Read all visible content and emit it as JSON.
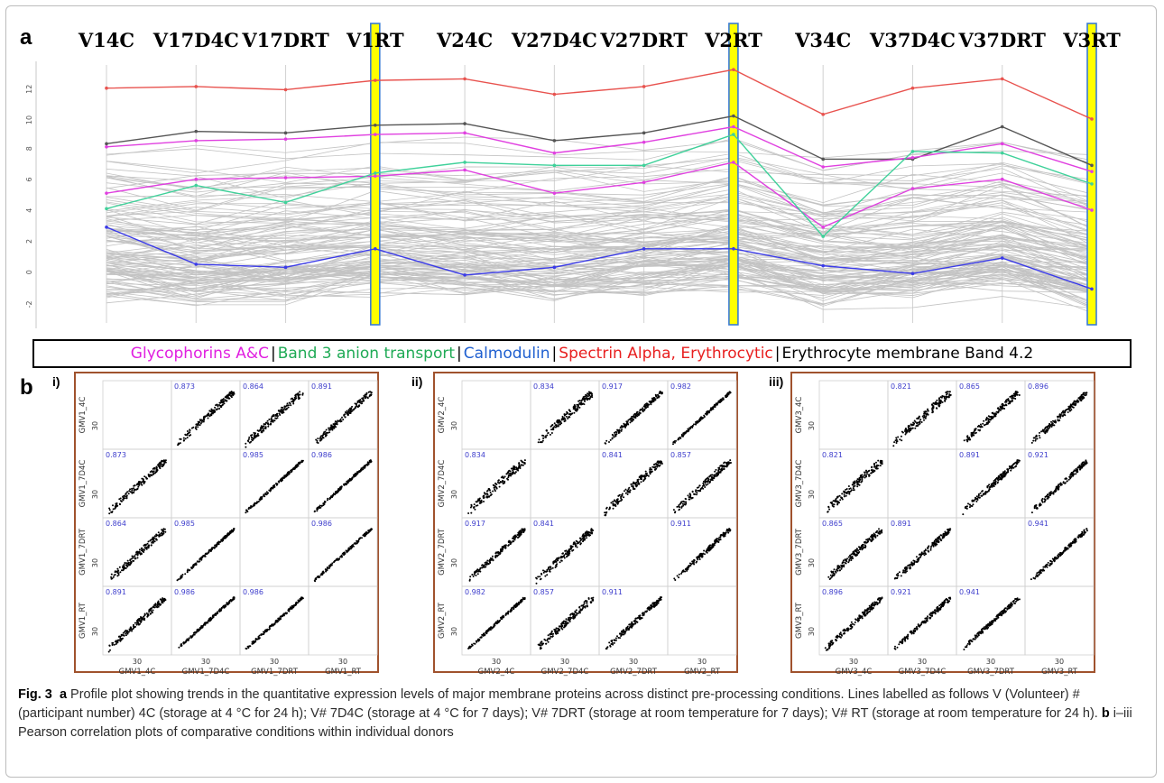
{
  "panel_a_letter": "a",
  "panel_b_letter": "b",
  "chart_data": [
    {
      "type": "line",
      "panel": "a",
      "categories": [
        "V14C",
        "V17D4C",
        "V17DRT",
        "V1RT",
        "V24C",
        "V27D4C",
        "V27DRT",
        "V2RT",
        "V34C",
        "V37D4C",
        "V37DRT",
        "V3RT"
      ],
      "highlighted_categories": [
        "V1RT",
        "V2RT",
        "V3RT"
      ],
      "highlight_color": "#ffff00",
      "yticks": [
        -2,
        0,
        2,
        4,
        6,
        8,
        10,
        12
      ],
      "ylim": [
        -3.2,
        13.5
      ],
      "background_series_count": 120,
      "background_color": "#c3c3c3",
      "series": [
        {
          "name": "Spectrin Alpha, Erythrocytic",
          "color": "#e8534f",
          "values": [
            12,
            12.1,
            11.9,
            12.5,
            12.6,
            11.6,
            12.1,
            13.2,
            10.3,
            12,
            12.6,
            10
          ]
        },
        {
          "name": "Erythrocyte membrane Band 4.2",
          "color": "#555555",
          "values": [
            8.4,
            9.2,
            9.1,
            9.6,
            9.7,
            8.6,
            9.1,
            10.2,
            7.4,
            7.4,
            9.5,
            7
          ]
        },
        {
          "name": "Glycophorins A&C",
          "color": "#e040e0",
          "values": [
            8.2,
            8.6,
            8.7,
            9.0,
            9.1,
            7.8,
            8.5,
            9.5,
            6.9,
            7.5,
            8.4,
            6.6
          ]
        },
        {
          "name": "Glycophorins A&C",
          "color": "#e040e0",
          "values": [
            5.2,
            6.1,
            6.2,
            6.3,
            6.7,
            5.2,
            5.9,
            7.2,
            3.0,
            5.5,
            6.1,
            4.1
          ]
        },
        {
          "name": "Band 3 anion transport",
          "color": "#3fd19a",
          "values": [
            4.2,
            5.7,
            4.6,
            6.5,
            7.2,
            7.0,
            7.0,
            9.0,
            2.4,
            7.9,
            7.8,
            5.8
          ]
        },
        {
          "name": "Calmodulin",
          "color": "#3b3be8",
          "values": [
            3.0,
            0.6,
            0.4,
            1.6,
            -0.1,
            0.4,
            1.6,
            1.6,
            0.5,
            0.0,
            1.0,
            -1.0
          ]
        }
      ]
    },
    {
      "type": "scatter",
      "panel": "b-i",
      "label": "i)",
      "variables": [
        "GMV1_4C",
        "GMV1_7D4C",
        "GMV1_7DRT",
        "GMV1_RT"
      ],
      "correlations": [
        [
          null,
          0.873,
          0.864,
          0.891
        ],
        [
          0.873,
          null,
          0.985,
          0.986
        ],
        [
          0.864,
          0.985,
          null,
          0.986
        ],
        [
          0.891,
          0.986,
          0.986,
          null
        ]
      ],
      "tick_label": "30"
    },
    {
      "type": "scatter",
      "panel": "b-ii",
      "label": "ii)",
      "variables": [
        "GMV2_4C",
        "GMV2_7D4C",
        "GMV2_7DRT",
        "GMV2_RT"
      ],
      "correlations": [
        [
          null,
          0.834,
          0.917,
          0.982
        ],
        [
          0.834,
          null,
          0.841,
          0.857
        ],
        [
          0.917,
          0.841,
          null,
          0.911
        ],
        [
          0.982,
          0.857,
          0.911,
          null
        ]
      ],
      "tick_label": "30"
    },
    {
      "type": "scatter",
      "panel": "b-iii",
      "label": "iii)",
      "variables": [
        "GMV3_4C",
        "GMV3_7D4C",
        "GMV3_7DRT",
        "GMV3_RT"
      ],
      "correlations": [
        [
          null,
          0.821,
          0.865,
          0.896
        ],
        [
          0.821,
          null,
          0.891,
          0.921
        ],
        [
          0.865,
          0.891,
          null,
          0.941
        ],
        [
          0.896,
          0.921,
          0.941,
          null
        ]
      ],
      "tick_label": "30"
    }
  ],
  "legend": {
    "items": [
      {
        "label": "Glycophorins A&C",
        "color": "#e020e0"
      },
      {
        "label": "Band 3 anion transport ",
        "color": "#1faa55"
      },
      {
        "label": "Calmodulin ",
        "color": "#2060d0"
      },
      {
        "label": "Spectrin Alpha, Erythrocytic ",
        "color": "#e82020"
      },
      {
        "label": "Erythrocyte membrane Band 4.2",
        "color": "#000000"
      }
    ],
    "separator": "|"
  },
  "caption": {
    "fig_label": "Fig. 3",
    "a_label": "a",
    "a_text": " Profile plot showing trends in the quantitative expression levels of major membrane proteins across distinct pre-processing conditions. Lines labelled as follows V (Volunteer) # (participant number) 4C (storage at 4 °C for 24 h); V# 7D4C (storage at 4 °C for 7 days); V# 7DRT (storage at room temperature for 7 days); V# RT (storage at room temperature for 24 h). ",
    "b_label": "b",
    "b_text": " i–iii Pearson correlation plots of comparative conditions within individual donors"
  }
}
